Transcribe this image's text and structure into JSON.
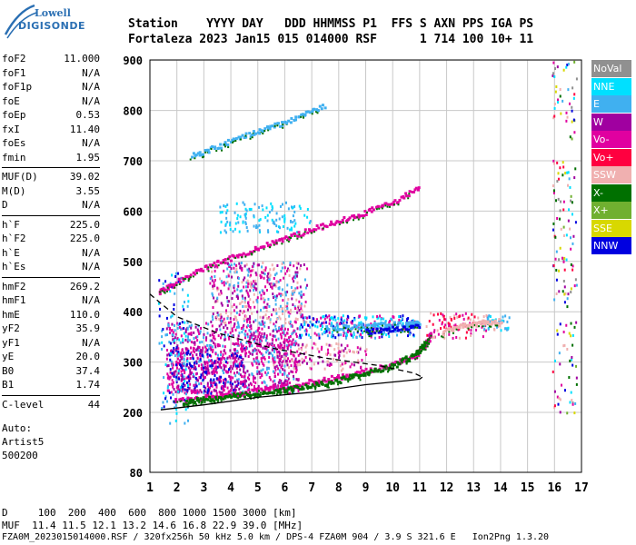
{
  "logo": {
    "line1": "Lowell",
    "line2": "DIGISONDE"
  },
  "header": {
    "line1": "Station    YYYY DAY   DDD HHMMSS P1  FFS S AXN PPS IGA PS",
    "line2": "Fortaleza 2023 Jan15 015 014000 RSF      1 714 100 10+ 11"
  },
  "params": {
    "group1": [
      {
        "k": "foF2",
        "v": "11.000"
      },
      {
        "k": "foF1",
        "v": "N/A"
      },
      {
        "k": "foF1p",
        "v": "N/A"
      },
      {
        "k": "foE",
        "v": "N/A"
      },
      {
        "k": "foEp",
        "v": "0.53"
      },
      {
        "k": "fxI",
        "v": "11.40"
      },
      {
        "k": "foEs",
        "v": "N/A"
      },
      {
        "k": "fmin",
        "v": "1.95"
      }
    ],
    "group2": [
      {
        "k": "MUF(D)",
        "v": "39.02"
      },
      {
        "k": "M(D)",
        "v": "3.55"
      },
      {
        "k": "D",
        "v": "N/A"
      }
    ],
    "group3": [
      {
        "k": "h`F",
        "v": "225.0"
      },
      {
        "k": "h`F2",
        "v": "225.0"
      },
      {
        "k": "h`E",
        "v": "N/A"
      },
      {
        "k": "h`Es",
        "v": "N/A"
      }
    ],
    "group4": [
      {
        "k": "hmF2",
        "v": "269.2"
      },
      {
        "k": "hmF1",
        "v": "N/A"
      },
      {
        "k": "hmE",
        "v": "110.0"
      },
      {
        "k": "yF2",
        "v": "35.9"
      },
      {
        "k": "yF1",
        "v": "N/A"
      },
      {
        "k": "yE",
        "v": "20.0"
      },
      {
        "k": "B0",
        "v": "37.4"
      },
      {
        "k": "B1",
        "v": "1.74"
      }
    ],
    "group5": [
      {
        "k": "C-level",
        "v": "44"
      }
    ],
    "auto": [
      "Auto:",
      "Artist5",
      "500200"
    ]
  },
  "bottom": {
    "line1": "D     100  200  400  600  800 1000 1500 3000 [km]",
    "line2": "MUF  11.4 11.5 12.1 13.2 14.6 16.8 22.9 39.0 [MHz]",
    "line3": "FZA0M_2023015014000.RSF / 320fx256h 50 kHz 5.0 km / DPS-4 FZA0M 904 / 3.9 S 321.6 E   Ion2Png 1.3.20"
  },
  "legend": [
    {
      "label": "NoVal",
      "color": "#909090"
    },
    {
      "label": "NNE",
      "color": "#00e0ff"
    },
    {
      "label": "E",
      "color": "#40b0f0"
    },
    {
      "label": "W",
      "color": "#a000a0"
    },
    {
      "label": "Vo-",
      "color": "#e000a0"
    },
    {
      "label": "Vo+",
      "color": "#ff0040"
    },
    {
      "label": "SSW",
      "color": "#f0b0b0"
    },
    {
      "label": "X-",
      "color": "#007000"
    },
    {
      "label": "X+",
      "color": "#70b030"
    },
    {
      "label": "SSE",
      "color": "#d8d800"
    },
    {
      "label": "NNW",
      "color": "#0000e0"
    }
  ],
  "chart_data": {
    "type": "scatter",
    "xlim": [
      1,
      17
    ],
    "ylim": [
      80,
      900
    ],
    "xticks": [
      1,
      2,
      3,
      4,
      5,
      6,
      7,
      8,
      9,
      10,
      11,
      12,
      13,
      14,
      15,
      16,
      17
    ],
    "yticks": [
      80,
      200,
      300,
      400,
      500,
      600,
      700,
      800,
      900
    ],
    "grid": true,
    "curves": [
      {
        "style": "solid",
        "points": [
          [
            1.4,
            205
          ],
          [
            3,
            215
          ],
          [
            5,
            230
          ],
          [
            7,
            240
          ],
          [
            9,
            255
          ],
          [
            10.5,
            263
          ],
          [
            11,
            266
          ],
          [
            11.1,
            270
          ]
        ]
      },
      {
        "style": "dashed",
        "points": [
          [
            1.0,
            435
          ],
          [
            2.0,
            390
          ],
          [
            3.5,
            358
          ],
          [
            5.5,
            328
          ],
          [
            7.5,
            308
          ],
          [
            9.5,
            293
          ],
          [
            10.8,
            278
          ],
          [
            11.1,
            270
          ]
        ]
      }
    ],
    "traces": [
      {
        "series": "O-trace",
        "color": "#e000a0",
        "points": [
          [
            1.9,
            225
          ],
          [
            3,
            232
          ],
          [
            4,
            238
          ],
          [
            5,
            246
          ],
          [
            6,
            254
          ],
          [
            7,
            263
          ],
          [
            8,
            273
          ],
          [
            9,
            285
          ],
          [
            10,
            298
          ],
          [
            10.8,
            315
          ],
          [
            11.2,
            338
          ],
          [
            11.4,
            360
          ]
        ]
      },
      {
        "series": "X-trace",
        "color": "#007000",
        "points": [
          [
            2.2,
            222
          ],
          [
            3,
            228
          ],
          [
            4,
            234
          ],
          [
            5,
            240
          ],
          [
            6,
            247
          ],
          [
            7,
            256
          ],
          [
            8,
            266
          ],
          [
            9,
            280
          ],
          [
            10,
            295
          ],
          [
            10.8,
            318
          ],
          [
            11.3,
            345
          ]
        ]
      },
      {
        "series": "second-hop",
        "color": "#e000a0",
        "points": [
          [
            1.3,
            440
          ],
          [
            2,
            462
          ],
          [
            3,
            488
          ],
          [
            4,
            510
          ],
          [
            5,
            530
          ],
          [
            6,
            548
          ],
          [
            7,
            566
          ],
          [
            8,
            582
          ],
          [
            9,
            600
          ],
          [
            10,
            620
          ],
          [
            11,
            650
          ]
        ]
      },
      {
        "series": "third-hop",
        "color": "#40b0f0",
        "points": [
          [
            2.5,
            712
          ],
          [
            3.5,
            730
          ],
          [
            4.5,
            752
          ],
          [
            5.5,
            770
          ],
          [
            6.5,
            788
          ],
          [
            7.5,
            812
          ]
        ]
      },
      {
        "series": "spread-F",
        "color": "#40b0f0",
        "points": [
          [
            7.5,
            370
          ],
          [
            8.5,
            372
          ],
          [
            9.5,
            375
          ],
          [
            10.5,
            378
          ],
          [
            11,
            382
          ]
        ]
      },
      {
        "series": "spread-F-nnw",
        "color": "#0000e0",
        "points": [
          [
            9,
            362
          ],
          [
            10,
            368
          ],
          [
            11,
            372
          ]
        ]
      },
      {
        "series": "upper",
        "color": "#f0b0b0",
        "points": [
          [
            11.8,
            360
          ],
          [
            12.5,
            372
          ],
          [
            13.2,
            380
          ],
          [
            14,
            385
          ]
        ]
      }
    ]
  }
}
